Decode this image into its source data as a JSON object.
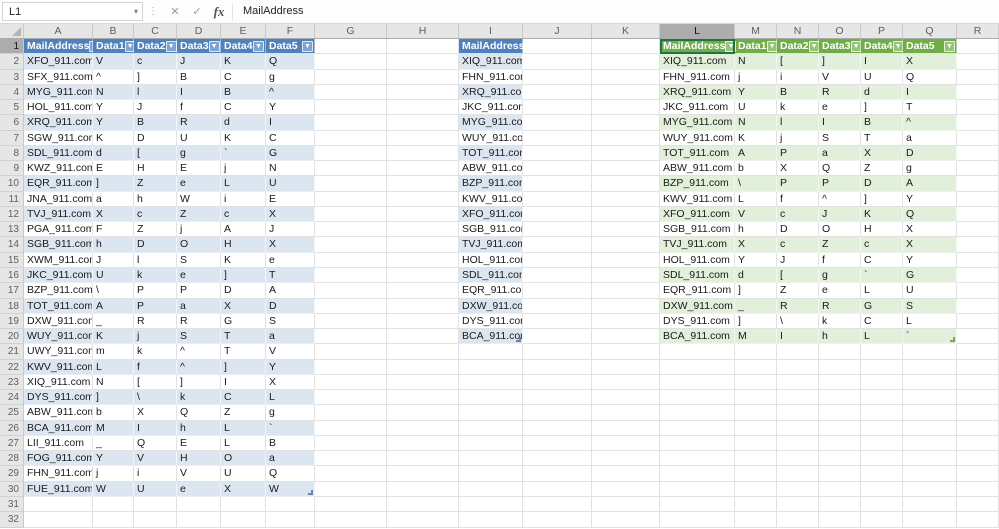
{
  "formula_bar": {
    "name_box": "L1",
    "cancel_label": "✕",
    "enter_label": "✓",
    "fx_label": "fx",
    "formula": "MailAddress"
  },
  "grid": {
    "column_letters": [
      "A",
      "B",
      "C",
      "D",
      "E",
      "F",
      "G",
      "H",
      "I",
      "J",
      "K",
      "L",
      "M",
      "N",
      "O",
      "P",
      "Q",
      "R"
    ],
    "row_count": 32,
    "selected_cell": "L1",
    "selected_column": "L",
    "selected_row": 1
  },
  "colors": {
    "blue_table_header": "#4f81bd",
    "blue_table_band": "#dce6f1",
    "green_table_header": "#70ad47",
    "green_table_band": "#e2efda",
    "selection_border": "#217346"
  },
  "tables": [
    {
      "name": "left-blue-table",
      "style": "blue",
      "start_col": "A",
      "start_row": 1,
      "headers": [
        "MailAddress",
        "Data1",
        "Data2",
        "Data3",
        "Data4",
        "Data5"
      ],
      "rows": [
        [
          "XFO_911.com",
          "V",
          "c",
          "J",
          "K",
          "Q"
        ],
        [
          "SFX_911.com",
          "^",
          "]",
          "B",
          "C",
          "g"
        ],
        [
          "MYG_911.com",
          "N",
          "l",
          "I",
          "B",
          "^"
        ],
        [
          "HOL_911.com",
          "Y",
          "J",
          "f",
          "C",
          "Y"
        ],
        [
          "XRQ_911.com",
          "Y",
          "B",
          "R",
          "d",
          "I"
        ],
        [
          "SGW_911.com",
          "K",
          "D",
          "U",
          "K",
          "C"
        ],
        [
          "SDL_911.com",
          "d",
          "[",
          "g",
          "`",
          "G"
        ],
        [
          "KWZ_911.com",
          "E",
          "H",
          "E",
          "j",
          "N"
        ],
        [
          "EQR_911.com",
          "]",
          "Z",
          "e",
          "L",
          "U"
        ],
        [
          "JNA_911.com",
          "a",
          "h",
          "W",
          "i",
          "E"
        ],
        [
          "TVJ_911.com",
          "X",
          "c",
          "Z",
          "c",
          "X"
        ],
        [
          "PGA_911.com",
          "F",
          "Z",
          "j",
          "A",
          "J"
        ],
        [
          "SGB_911.com",
          "h",
          "D",
          "O",
          "H",
          "X"
        ],
        [
          "XWM_911.com",
          "J",
          "l",
          "S",
          "K",
          "e"
        ],
        [
          "JKC_911.com",
          "U",
          "k",
          "e",
          "]",
          "T"
        ],
        [
          "BZP_911.com",
          "\\",
          "P",
          "P",
          "D",
          "A"
        ],
        [
          "TOT_911.com",
          "A",
          "P",
          "a",
          "X",
          "D"
        ],
        [
          "DXW_911.com",
          "_",
          "R",
          "R",
          "G",
          "S"
        ],
        [
          "WUY_911.com",
          "K",
          "j",
          "S",
          "T",
          "a"
        ],
        [
          "UWY_911.com",
          "m",
          "k",
          "^",
          "T",
          "V"
        ],
        [
          "KWV_911.com",
          "L",
          "f",
          "^",
          "]",
          "Y"
        ],
        [
          "XIQ_911.com",
          "N",
          "[",
          "]",
          "I",
          "X"
        ],
        [
          "DYS_911.com",
          "]",
          "\\",
          "k",
          "C",
          "L"
        ],
        [
          "ABW_911.com",
          "b",
          "X",
          "Q",
          "Z",
          "g"
        ],
        [
          "BCA_911.com",
          "M",
          "I",
          "h",
          "L",
          "`"
        ],
        [
          "LII_911.com",
          "_",
          "Q",
          "E",
          "L",
          "B"
        ],
        [
          "FOG_911.com",
          "Y",
          "V",
          "H",
          "O",
          "a"
        ],
        [
          "FHN_911.com",
          "j",
          "i",
          "V",
          "U",
          "Q"
        ],
        [
          "FUE_911.com",
          "W",
          "U",
          "e",
          "X",
          "W"
        ]
      ]
    },
    {
      "name": "middle-blue-table",
      "style": "blue",
      "start_col": "I",
      "start_row": 1,
      "headers": [
        "MailAddress"
      ],
      "rows": [
        [
          "XIQ_911.com"
        ],
        [
          "FHN_911.com"
        ],
        [
          "XRQ_911.com"
        ],
        [
          "JKC_911.com"
        ],
        [
          "MYG_911.com"
        ],
        [
          "WUY_911.com"
        ],
        [
          "TOT_911.com"
        ],
        [
          "ABW_911.com"
        ],
        [
          "BZP_911.com"
        ],
        [
          "KWV_911.com"
        ],
        [
          "XFO_911.com"
        ],
        [
          "SGB_911.com"
        ],
        [
          "TVJ_911.com"
        ],
        [
          "HOL_911.com"
        ],
        [
          "SDL_911.com"
        ],
        [
          "EQR_911.com"
        ],
        [
          "DXW_911.com"
        ],
        [
          "DYS_911.com"
        ],
        [
          "BCA_911.com"
        ]
      ]
    },
    {
      "name": "right-green-table",
      "style": "green",
      "start_col": "L",
      "start_row": 1,
      "headers": [
        "MailAddress",
        "Data1",
        "Data2",
        "Data3",
        "Data4",
        "Data5"
      ],
      "rows": [
        [
          "XIQ_911.com",
          "N",
          "[",
          "]",
          "I",
          "X"
        ],
        [
          "FHN_911.com",
          "j",
          "i",
          "V",
          "U",
          "Q"
        ],
        [
          "XRQ_911.com",
          "Y",
          "B",
          "R",
          "d",
          "I"
        ],
        [
          "JKC_911.com",
          "U",
          "k",
          "e",
          "]",
          "T"
        ],
        [
          "MYG_911.com",
          "N",
          "l",
          "I",
          "B",
          "^"
        ],
        [
          "WUY_911.com",
          "K",
          "j",
          "S",
          "T",
          "a"
        ],
        [
          "TOT_911.com",
          "A",
          "P",
          "a",
          "X",
          "D"
        ],
        [
          "ABW_911.com",
          "b",
          "X",
          "Q",
          "Z",
          "g"
        ],
        [
          "BZP_911.com",
          "\\",
          "P",
          "P",
          "D",
          "A"
        ],
        [
          "KWV_911.com",
          "L",
          "f",
          "^",
          "]",
          "Y"
        ],
        [
          "XFO_911.com",
          "V",
          "c",
          "J",
          "K",
          "Q"
        ],
        [
          "SGB_911.com",
          "h",
          "D",
          "O",
          "H",
          "X"
        ],
        [
          "TVJ_911.com",
          "X",
          "c",
          "Z",
          "c",
          "X"
        ],
        [
          "HOL_911.com",
          "Y",
          "J",
          "f",
          "C",
          "Y"
        ],
        [
          "SDL_911.com",
          "d",
          "[",
          "g",
          "`",
          "G"
        ],
        [
          "EQR_911.com",
          "]",
          "Z",
          "e",
          "L",
          "U"
        ],
        [
          "DXW_911.com",
          "_",
          "R",
          "R",
          "G",
          "S"
        ],
        [
          "DYS_911.com",
          "]",
          "\\",
          "k",
          "C",
          "L"
        ],
        [
          "BCA_911.com",
          "M",
          "I",
          "h",
          "L",
          "`"
        ]
      ]
    }
  ]
}
